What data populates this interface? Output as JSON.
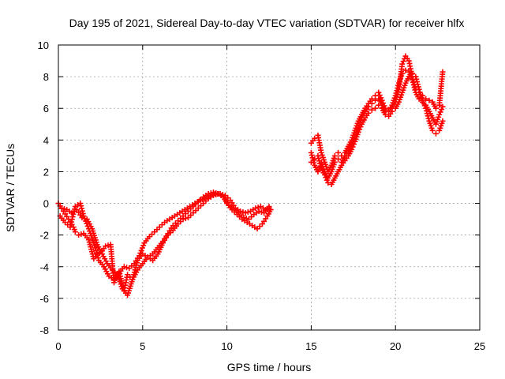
{
  "chart_data": {
    "type": "scatter",
    "title": "Day 195 of 2021, Sidereal Day-to-day VTEC variation (SDTVAR) for receiver hlfx",
    "xlabel": "GPS time / hours",
    "ylabel": "SDTVAR / TECUs",
    "xlim": [
      0,
      25
    ],
    "ylim": [
      -8,
      10
    ],
    "x_ticks": [
      "0",
      "5",
      "10",
      "15",
      "20",
      "25"
    ],
    "y_ticks": [
      "-8",
      "-6",
      "-4",
      "-2",
      "0",
      "2",
      "4",
      "6",
      "8",
      "10"
    ],
    "grid": true,
    "marker": "plus",
    "color": "#ff0000",
    "series": [
      {
        "x": [
          0.0,
          0.3,
          0.6,
          0.9,
          1.0,
          1.2,
          1.5,
          1.8,
          2.1,
          2.3,
          2.6,
          2.8,
          3.1,
          3.3,
          3.6,
          3.9,
          4.1,
          4.4,
          4.7,
          5.0,
          5.3,
          5.6,
          5.9,
          6.2,
          6.5,
          6.8,
          7.1,
          7.4,
          7.7,
          8.0,
          8.3,
          8.6,
          8.9,
          9.2,
          9.5,
          9.8,
          10.0,
          10.3,
          10.6,
          10.9,
          11.2,
          11.5,
          11.8,
          12.1,
          12.4,
          12.6
        ],
        "y": [
          0.0,
          -0.5,
          -1.0,
          -1.5,
          -1.8,
          -2.0,
          -1.9,
          -2.3,
          -3.5,
          -3.2,
          -3.0,
          -2.7,
          -2.6,
          -5.0,
          -4.3,
          -5.5,
          -4.5,
          -4.8,
          -3.6,
          -3.2,
          -3.4,
          -3.6,
          -3.2,
          -2.5,
          -2.0,
          -1.7,
          -1.3,
          -1.0,
          -0.9,
          -0.6,
          -0.3,
          0.0,
          0.3,
          0.5,
          0.6,
          0.4,
          0.0,
          -0.4,
          -0.7,
          -1.0,
          -1.2,
          -1.4,
          -1.6,
          -1.3,
          -0.8,
          -0.4
        ]
      },
      {
        "x": [
          0.1,
          0.4,
          0.7,
          1.0,
          1.3,
          1.5,
          1.8,
          2.1,
          2.4,
          2.7,
          3.0,
          3.3,
          3.6,
          3.9,
          4.2,
          4.5,
          4.8,
          5.1,
          5.4,
          5.7,
          6.0,
          6.3,
          6.6,
          6.9,
          7.2,
          7.5,
          7.8,
          8.1,
          8.4,
          8.7,
          9.0,
          9.3,
          9.6,
          9.9,
          10.2,
          10.5,
          10.8,
          11.1,
          11.4,
          11.7,
          12.0,
          12.3,
          12.5
        ],
        "y": [
          -0.8,
          -1.2,
          -1.5,
          -0.2,
          0.0,
          -0.8,
          -1.6,
          -2.5,
          -3.6,
          -4.0,
          -4.6,
          -4.8,
          -4.4,
          -4.0,
          -4.1,
          -3.8,
          -3.3,
          -2.5,
          -2.1,
          -1.8,
          -1.5,
          -1.2,
          -1.0,
          -0.8,
          -0.6,
          -0.4,
          -0.2,
          0.0,
          0.2,
          0.3,
          0.5,
          0.6,
          0.6,
          0.5,
          0.2,
          -0.3,
          -0.5,
          -0.6,
          -0.5,
          -0.3,
          -0.2,
          -0.4,
          -0.3
        ]
      },
      {
        "x": [
          0.2,
          0.5,
          0.8,
          1.1,
          1.4,
          1.7,
          2.0,
          2.3,
          2.6,
          2.9,
          3.2,
          3.5,
          3.8,
          4.1,
          4.4,
          4.7,
          5.0,
          5.3,
          5.6,
          5.9,
          6.2,
          6.5,
          6.8,
          7.1,
          7.4,
          7.7,
          8.0,
          8.3,
          8.6,
          8.9,
          9.2,
          9.5,
          9.8,
          10.1,
          10.4,
          10.7,
          11.0,
          11.3,
          11.6,
          11.9,
          12.2,
          12.5
        ],
        "y": [
          -0.3,
          -0.4,
          -0.6,
          -0.4,
          -0.9,
          -1.0,
          -1.6,
          -2.6,
          -3.2,
          -3.8,
          -4.2,
          -4.5,
          -5.4,
          -5.8,
          -4.8,
          -4.2,
          -3.8,
          -3.4,
          -3.2,
          -2.8,
          -2.4,
          -1.9,
          -1.4,
          -1.1,
          -0.8,
          -0.5,
          -0.2,
          0.1,
          0.4,
          0.6,
          0.7,
          0.6,
          0.4,
          -0.1,
          -0.3,
          -0.6,
          -0.9,
          -1.0,
          -0.7,
          -0.5,
          -0.6,
          -0.2
        ]
      },
      {
        "x": [
          15.0,
          15.2,
          15.4,
          15.6,
          15.8,
          16.0,
          16.2,
          16.4,
          16.6,
          16.8,
          17.0,
          17.2,
          17.4,
          17.6,
          17.8,
          18.0,
          18.2,
          18.4,
          18.6,
          18.8,
          19.0,
          19.2,
          19.4,
          19.6,
          19.8,
          20.0,
          20.2,
          20.4,
          20.6,
          20.8,
          21.0,
          21.2,
          21.4,
          21.6,
          21.8,
          22.0,
          22.2,
          22.4,
          22.6,
          22.8
        ],
        "y": [
          3.8,
          4.1,
          4.3,
          3.2,
          2.6,
          2.0,
          2.4,
          3.0,
          3.2,
          3.0,
          3.2,
          3.6,
          4.0,
          4.6,
          5.2,
          5.6,
          6.0,
          6.3,
          6.6,
          6.8,
          7.0,
          6.5,
          6.0,
          5.8,
          6.0,
          6.4,
          7.2,
          8.8,
          9.3,
          9.0,
          8.0,
          7.2,
          7.0,
          6.8,
          6.6,
          6.5,
          6.4,
          6.0,
          6.2,
          8.3
        ]
      },
      {
        "x": [
          15.0,
          15.2,
          15.4,
          15.6,
          15.8,
          16.0,
          16.2,
          16.4,
          16.6,
          16.8,
          17.0,
          17.2,
          17.4,
          17.6,
          17.8,
          18.0,
          18.2,
          18.4,
          18.6,
          18.8,
          19.0,
          19.2,
          19.4,
          19.6,
          19.8,
          20.0,
          20.2,
          20.4,
          20.6,
          20.8,
          21.0,
          21.2,
          21.4,
          21.6,
          21.8,
          22.0,
          22.2,
          22.4,
          22.6,
          22.8
        ],
        "y": [
          2.6,
          2.8,
          3.0,
          2.2,
          1.8,
          1.3,
          1.2,
          1.6,
          2.0,
          2.4,
          2.7,
          3.0,
          3.4,
          3.9,
          4.5,
          5.0,
          5.4,
          5.7,
          5.9,
          6.0,
          6.2,
          6.0,
          5.6,
          5.5,
          5.8,
          6.0,
          6.4,
          7.0,
          7.6,
          8.0,
          8.2,
          8.0,
          7.2,
          6.5,
          6.0,
          5.2,
          4.6,
          4.4,
          4.6,
          5.2
        ]
      },
      {
        "x": [
          15.0,
          15.2,
          15.4,
          15.6,
          15.8,
          16.0,
          16.2,
          16.4,
          16.6,
          16.8,
          17.0,
          17.2,
          17.4,
          17.6,
          17.8,
          18.0,
          18.2,
          18.4,
          18.6,
          18.8,
          19.0,
          19.2,
          19.4,
          19.6,
          19.8,
          20.0,
          20.2,
          20.4,
          20.6,
          20.8,
          21.0,
          21.2,
          21.4,
          21.6,
          21.8,
          22.0,
          22.2,
          22.4,
          22.6,
          22.8
        ],
        "y": [
          3.2,
          2.4,
          2.0,
          2.5,
          2.0,
          1.6,
          2.0,
          2.6,
          2.8,
          2.6,
          3.0,
          3.3,
          3.8,
          4.2,
          4.8,
          5.4,
          5.8,
          6.1,
          6.3,
          6.5,
          6.6,
          6.2,
          5.8,
          5.9,
          6.2,
          6.8,
          7.6,
          8.2,
          8.4,
          8.3,
          7.8,
          7.0,
          6.6,
          6.4,
          6.2,
          5.8,
          5.4,
          5.0,
          5.6,
          6.1
        ]
      }
    ]
  }
}
